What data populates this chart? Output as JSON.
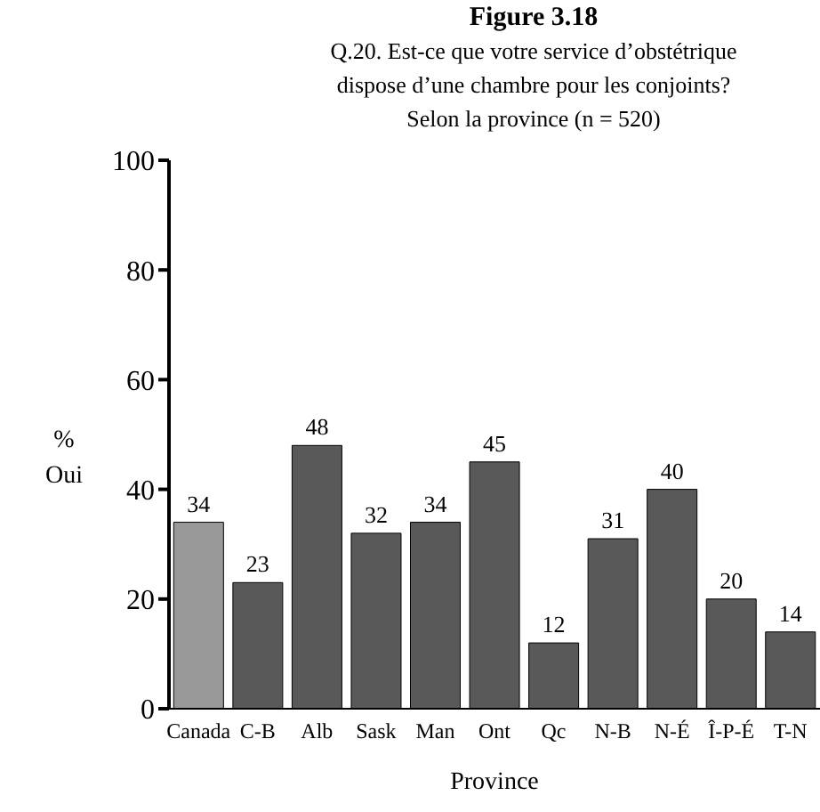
{
  "chart_data": {
    "type": "bar",
    "title": "Figure 3.18",
    "subtitle": "Q.20. Est-ce que votre service d’obstétrique dispose d’une chambre pour les conjoints? Selon la province (n = 520)",
    "xlabel": "Province",
    "ylabel": "% Oui",
    "categories": [
      "Canada",
      "C-B",
      "Alb",
      "Sask",
      "Man",
      "Ont",
      "Qc",
      "N-B",
      "N-É",
      "Î-P-É",
      "T-N"
    ],
    "values": [
      34,
      23,
      48,
      32,
      34,
      45,
      12,
      31,
      40,
      20,
      14
    ],
    "colors": [
      "#999999",
      "#595959",
      "#595959",
      "#595959",
      "#595959",
      "#595959",
      "#595959",
      "#595959",
      "#595959",
      "#595959",
      "#595959"
    ],
    "ylim": [
      0,
      100
    ],
    "yticks": [
      0,
      20,
      40,
      60,
      80,
      100
    ],
    "data_labels": true,
    "grid": false
  }
}
